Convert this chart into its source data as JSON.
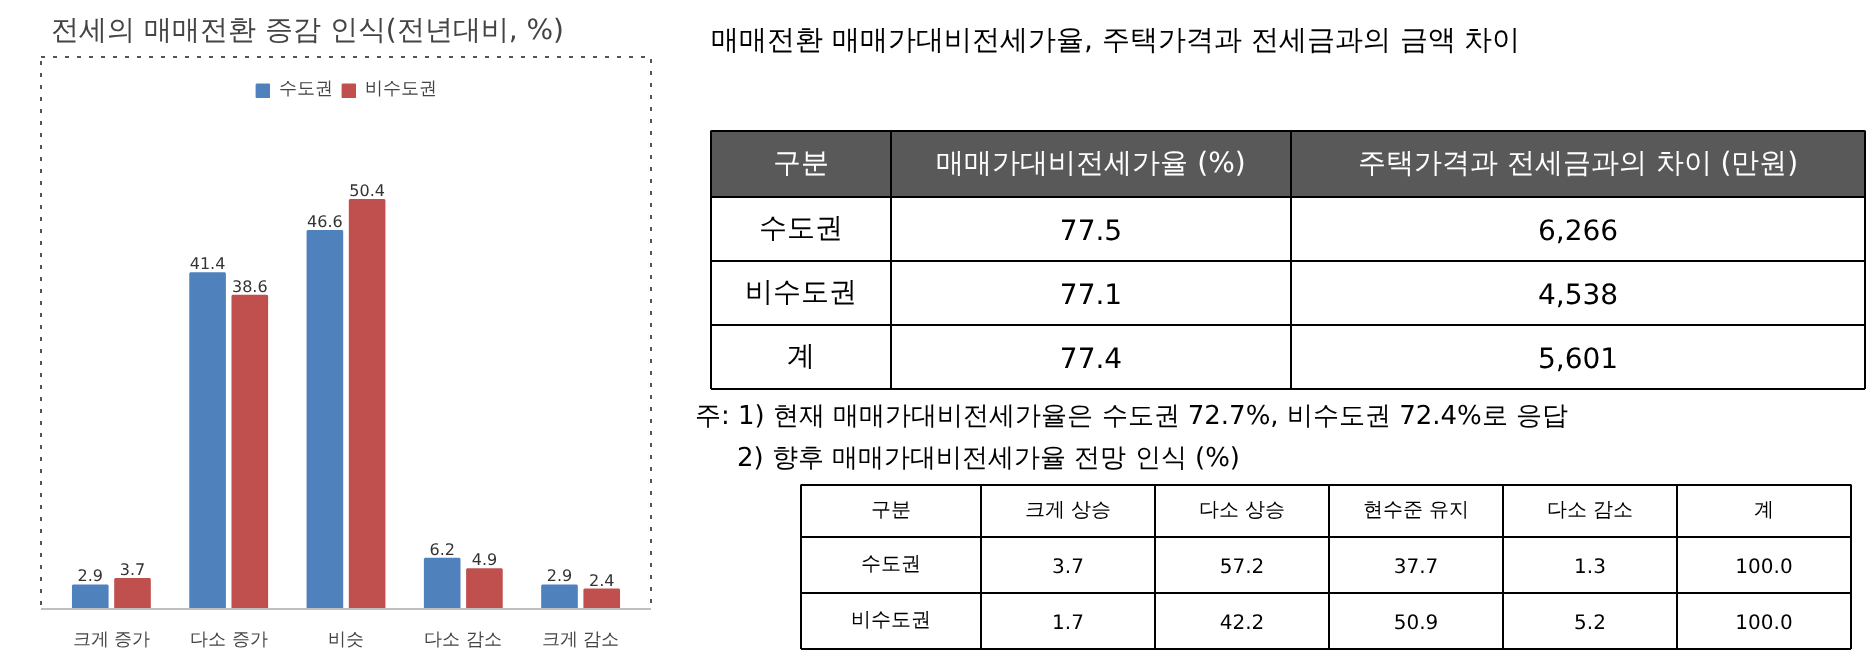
{
  "chart_data": [
    {
      "type": "bar",
      "title": "전세의 매매전환 증감 인식(전년대비, %)",
      "categories": [
        "크게 증가",
        "다소 증가",
        "비슷",
        "다소 감소",
        "크게 감소"
      ],
      "series": [
        {
          "name": "수도권",
          "color": "#4f81bd",
          "values": [
            2.9,
            41.4,
            46.6,
            6.2,
            2.9
          ]
        },
        {
          "name": "비수도권",
          "color": "#c0504d",
          "values": [
            3.7,
            38.6,
            50.4,
            4.9,
            2.4
          ]
        }
      ],
      "data_labels": true,
      "legend": "top",
      "grid": false
    },
    {
      "type": "heatmap",
      "title": "매매전환 매매가대비전세가율, 주택가격과 전세금과의 금액 차이",
      "ylabel": "구분",
      "categories": [
        "매매가대비전세가율 (%)",
        "주택가격과 전세금과의 차이 (만원)"
      ],
      "y_categories": [
        "수도권",
        "비수도권",
        "계"
      ],
      "cells": [
        [
          77.5,
          6266
        ],
        [
          77.1,
          4538
        ],
        [
          77.4,
          5601
        ]
      ],
      "cell_labels": [
        [
          "77.5",
          "6,266"
        ],
        [
          "77.1",
          "4,538"
        ],
        [
          "77.4",
          "5,601"
        ]
      ],
      "annotations": [
        "주: 1) 현재 매매가대비전세가율은 수도권 72.7%, 비수도권 72.4%로 응답"
      ]
    },
    {
      "type": "heatmap",
      "title": "2) 향후 매매가대비전세가율 전망 인식 (%)",
      "ylabel": "구분",
      "categories": [
        "크게 상승",
        "다소 상승",
        "현수준 유지",
        "다소 감소",
        "계"
      ],
      "y_categories": [
        "수도권",
        "비수도권"
      ],
      "cells": [
        [
          3.7,
          57.2,
          37.7,
          1.3,
          100.0
        ],
        [
          1.7,
          42.2,
          50.9,
          5.2,
          100.0
        ]
      ],
      "cell_labels": [
        [
          "3.7",
          "57.2",
          "37.7",
          "1.3",
          "100.0"
        ],
        [
          "1.7",
          "42.2",
          "50.9",
          "5.2",
          "100.0"
        ]
      ]
    }
  ]
}
